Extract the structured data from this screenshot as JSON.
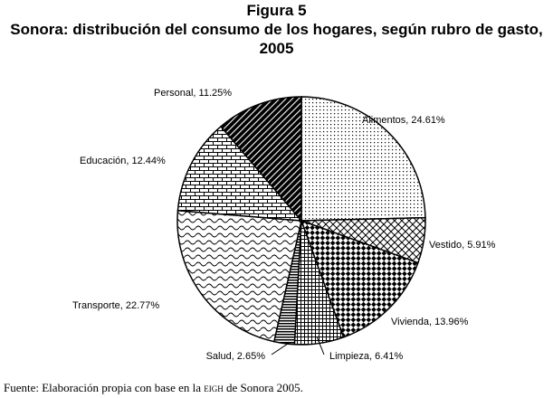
{
  "figure_label": "Figura 5",
  "title": "Sonora: distribución del consumo de los hogares, según rubro de gasto, 2005",
  "source": {
    "prefix": "Fuente: Elaboración propia con base en la ",
    "acronym": "eigh",
    "suffix": " de Sonora 2005."
  },
  "chart_data": {
    "type": "pie",
    "title": "Sonora: distribución del consumo de los hogares, según rubro de gasto, 2005",
    "slices": [
      {
        "label": "Alimentos",
        "value": 24.61,
        "text": "Alimentos, 24.61%",
        "pattern": "dots"
      },
      {
        "label": "Vestido",
        "value": 5.91,
        "text": "Vestido, 5.91%",
        "pattern": "crosshatch"
      },
      {
        "label": "Vivienda",
        "value": 13.96,
        "text": "Vivienda, 13.96%",
        "pattern": "checker"
      },
      {
        "label": "Limpieza",
        "value": 6.41,
        "text": "Limpieza, 6.41%",
        "pattern": "grid"
      },
      {
        "label": "Salud",
        "value": 2.65,
        "text": "Salud, 2.65%",
        "pattern": "hstripes"
      },
      {
        "label": "Transporte",
        "value": 22.77,
        "text": "Transporte, 22.77%",
        "pattern": "waves"
      },
      {
        "label": "Educación",
        "value": 12.44,
        "text": "Educación, 12.44%",
        "pattern": "bricks"
      },
      {
        "label": "Personal",
        "value": 11.25,
        "text": "Personal, 11.25%",
        "pattern": "diagonal-solid"
      }
    ],
    "start": "12 o'clock, clockwise"
  }
}
